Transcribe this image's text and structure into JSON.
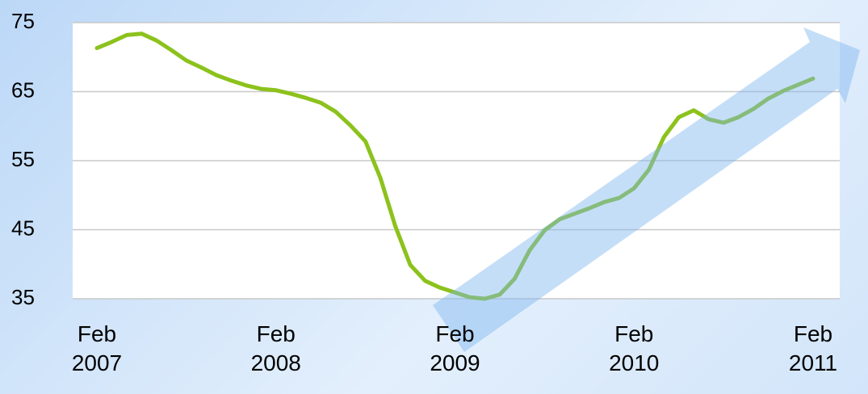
{
  "chart_data": {
    "type": "line",
    "categories": [
      "Feb 2007",
      null,
      null,
      null,
      null,
      null,
      null,
      null,
      null,
      null,
      null,
      null,
      "Feb 2008",
      null,
      null,
      null,
      null,
      null,
      null,
      null,
      null,
      null,
      null,
      null,
      "Feb 2009",
      null,
      null,
      null,
      null,
      null,
      null,
      null,
      null,
      null,
      null,
      null,
      "Feb 2010",
      null,
      null,
      null,
      null,
      null,
      null,
      null,
      null,
      null,
      null,
      null,
      "Feb 2011"
    ],
    "values": [
      71.3,
      72.2,
      73.2,
      73.4,
      72.4,
      71.0,
      69.5,
      68.5,
      67.4,
      66.6,
      65.9,
      65.4,
      65.2,
      64.7,
      64.1,
      63.4,
      62.1,
      60.1,
      57.8,
      52.5,
      45.5,
      39.9,
      37.6,
      36.6,
      35.9,
      35.2,
      35.0,
      35.6,
      37.9,
      42.0,
      44.9,
      46.5,
      47.3,
      48.1,
      49.0,
      49.6,
      51.0,
      53.7,
      58.4,
      61.3,
      62.3,
      61.0,
      60.5,
      61.3,
      62.5,
      64.0,
      65.1,
      66.0,
      66.9
    ],
    "color": "#8cc21c",
    "ylim": [
      35,
      75
    ],
    "yticks": [
      35,
      45,
      55,
      65,
      75
    ],
    "grid": true
  }
}
